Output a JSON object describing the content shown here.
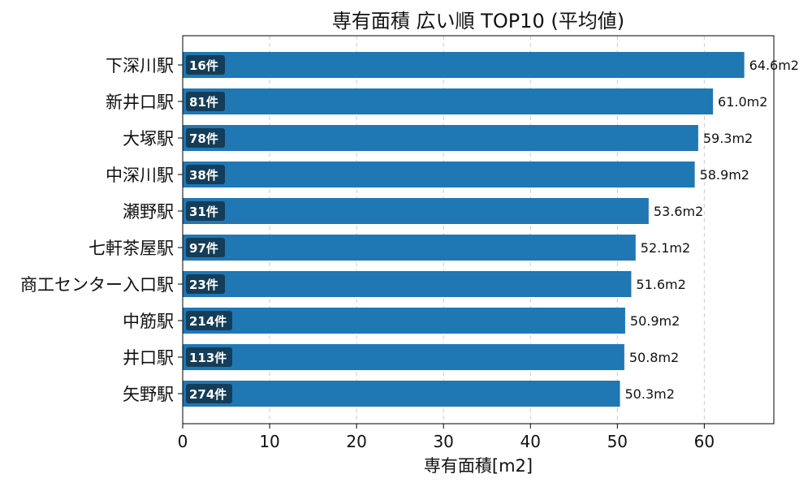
{
  "chart_data": {
    "type": "bar",
    "orientation": "horizontal",
    "title": "専有面積 広い順 TOP10 (平均値)",
    "xlabel": "専有面積[m2]",
    "ylabel": "",
    "xlim": [
      0,
      68
    ],
    "xticks": [
      0,
      10,
      20,
      30,
      40,
      50,
      60
    ],
    "grid": "x-dashed",
    "categories": [
      "下深川駅",
      "新井口駅",
      "大塚駅",
      "中深川駅",
      "瀬野駅",
      "七軒茶屋駅",
      "商工センター入口駅",
      "中筋駅",
      "井口駅",
      "矢野駅"
    ],
    "values": [
      64.6,
      61.0,
      59.3,
      58.9,
      53.6,
      52.1,
      51.6,
      50.9,
      50.8,
      50.3
    ],
    "value_labels": [
      "64.6m2",
      "61.0m2",
      "59.3m2",
      "58.9m2",
      "53.6m2",
      "52.1m2",
      "51.6m2",
      "50.9m2",
      "50.8m2",
      "50.3m2"
    ],
    "count_labels": [
      "16件",
      "81件",
      "78件",
      "38件",
      "31件",
      "97件",
      "23件",
      "214件",
      "113件",
      "274件"
    ],
    "colors": {
      "bar": "#1f77b4",
      "badge": "#143d59",
      "grid": "#cccccc"
    }
  }
}
